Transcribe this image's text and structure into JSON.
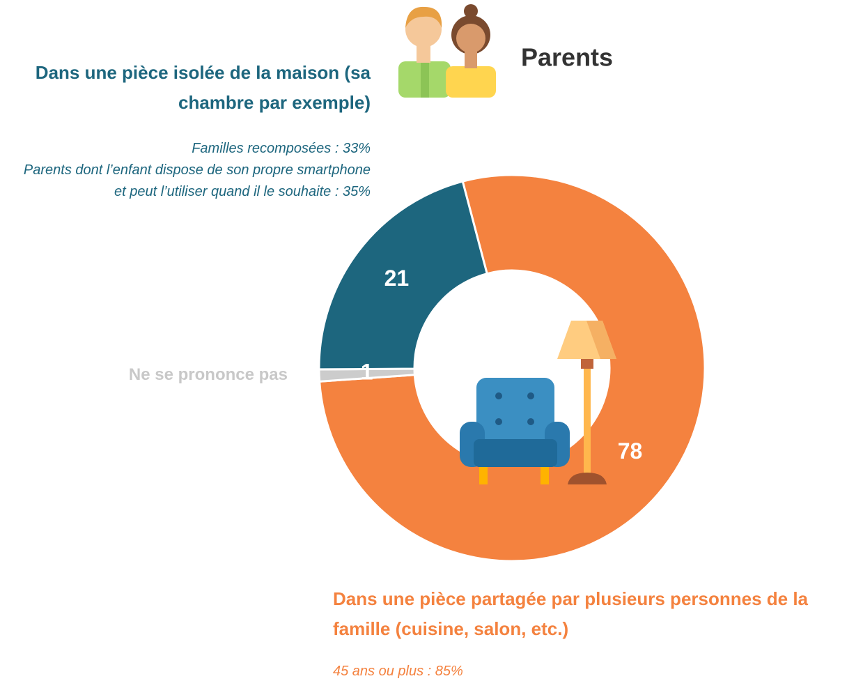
{
  "chart_data": {
    "type": "pie",
    "title": "Parents",
    "categories": [
      "Dans une pièce partagée par plusieurs personnes de la famille (cuisine, salon, etc.)",
      "Ne se prononce pas",
      "Dans une pièce isolée de la maison (sa chambre par exemple)"
    ],
    "values": [
      78,
      1,
      21
    ],
    "colors": [
      "#f4823f",
      "#cccccc",
      "#1d667e"
    ],
    "annotations": [
      [
        "45 ans ou plus : 85%"
      ],
      [],
      [
        "Familles recomposées : 33%",
        "Parents dont l’enfant dispose de son propre smartphone et peut l’utiliser quand il le souhaite : 35%"
      ]
    ]
  }
}
